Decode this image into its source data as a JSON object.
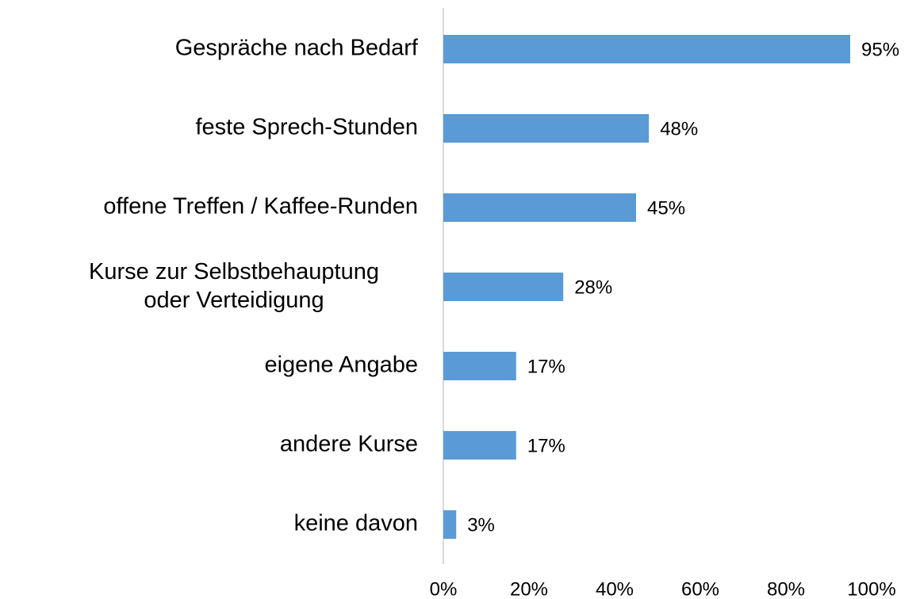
{
  "chart_data": {
    "type": "bar",
    "orientation": "horizontal",
    "categories": [
      "Gespräche nach Bedarf",
      "feste Sprech-Stunden",
      "offene Treffen / Kaffee-Runden",
      "Kurse zur Selbstbehauptung\noder Verteidigung",
      "eigene Angabe",
      "andere Kurse",
      "keine davon"
    ],
    "values": [
      95,
      48,
      45,
      28,
      17,
      17,
      3
    ],
    "value_labels": [
      "95%",
      "48%",
      "45%",
      "28%",
      "17%",
      "17%",
      "3%"
    ],
    "color": "#5b9bd5",
    "xlim": [
      0,
      100
    ],
    "xticks": [
      {
        "value": 0,
        "label": "0%"
      },
      {
        "value": 20,
        "label": "20%"
      },
      {
        "value": 40,
        "label": "40%"
      },
      {
        "value": 60,
        "label": "60%"
      },
      {
        "value": 80,
        "label": "80%"
      },
      {
        "value": 100,
        "label": "100%"
      }
    ],
    "grid": false
  }
}
